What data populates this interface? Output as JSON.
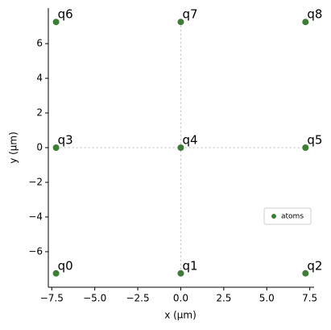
{
  "chart_data": {
    "type": "scatter",
    "xlabel": "x (µm)",
    "ylabel": "y (µm)",
    "xlim": [
      -7.7,
      7.75
    ],
    "ylim": [
      -8.05,
      8.05
    ],
    "xticks": [
      {
        "value": -7.5,
        "label": "−7.5"
      },
      {
        "value": -5,
        "label": "−5.0"
      },
      {
        "value": -2.5,
        "label": "−2.5"
      },
      {
        "value": 0,
        "label": "0.0"
      },
      2.5,
      {
        "value": 5,
        "label": "5.0"
      },
      7.5
    ],
    "yticks": [
      {
        "value": -6,
        "label": "−6"
      },
      {
        "value": -4,
        "label": "−4"
      },
      {
        "value": -2,
        "label": "−2"
      },
      0,
      2,
      4,
      6
    ],
    "legend": "lower right",
    "series": [
      {
        "name": "atoms",
        "color": "#3b7f35",
        "x": [
          -7.25,
          0,
          7.25,
          -7.25,
          0,
          7.25,
          -7.25,
          0,
          7.25
        ],
        "y": [
          -7.25,
          -7.25,
          -7.25,
          0,
          0,
          0,
          7.25,
          7.25,
          7.25
        ],
        "labels": [
          "q0",
          "q1",
          "q2",
          "q3",
          "q4",
          "q5",
          "q6",
          "q7",
          "q8"
        ]
      }
    ]
  }
}
